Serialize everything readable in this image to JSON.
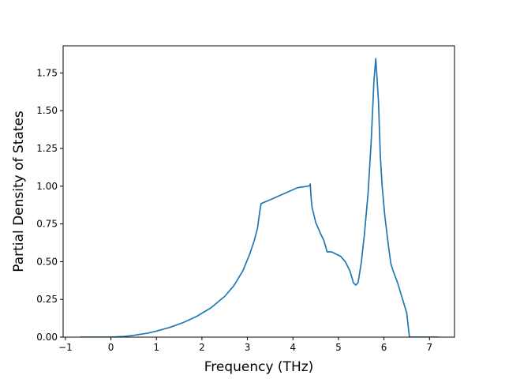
{
  "chart_data": {
    "type": "line",
    "title": "",
    "xlabel": "Frequency (THz)",
    "ylabel": "Partial Density of States",
    "xlim": [
      -1.05,
      7.55
    ],
    "ylim": [
      0.0,
      1.93
    ],
    "xticks": [
      -1,
      0,
      1,
      2,
      3,
      4,
      5,
      6,
      7
    ],
    "xtick_labels": [
      "−1",
      "0",
      "1",
      "2",
      "3",
      "4",
      "5",
      "6",
      "7"
    ],
    "yticks": [
      0.0,
      0.25,
      0.5,
      0.75,
      1.0,
      1.25,
      1.5,
      1.75
    ],
    "ytick_labels": [
      "0.00",
      "0.25",
      "0.50",
      "0.75",
      "1.00",
      "1.25",
      "1.50",
      "1.75"
    ],
    "grid": false,
    "series": [
      {
        "color": "#1f77b4",
        "x": [
          -0.68,
          -0.2,
          0,
          0.3,
          0.5,
          0.8,
          1.0,
          1.3,
          1.6,
          1.9,
          2.2,
          2.5,
          2.7,
          2.9,
          3.05,
          3.15,
          3.22,
          3.27,
          3.3,
          3.5,
          3.8,
          4.1,
          4.33,
          4.37,
          4.38,
          4.4,
          4.42,
          4.5,
          4.6,
          4.68,
          4.75,
          4.85,
          4.95,
          5.05,
          5.15,
          5.25,
          5.33,
          5.38,
          5.43,
          5.5,
          5.57,
          5.65,
          5.72,
          5.78,
          5.82,
          5.84,
          5.88,
          5.92,
          5.96,
          6.02,
          6.1,
          6.15,
          6.2,
          6.3,
          6.4,
          6.5,
          6.53,
          6.56,
          6.7,
          7.2
        ],
        "y": [
          0.0,
          0.0,
          0.0,
          0.005,
          0.012,
          0.026,
          0.04,
          0.065,
          0.098,
          0.14,
          0.195,
          0.27,
          0.34,
          0.44,
          0.55,
          0.64,
          0.72,
          0.83,
          0.885,
          0.91,
          0.95,
          0.99,
          1.0,
          1.005,
          1.015,
          0.92,
          0.86,
          0.76,
          0.69,
          0.64,
          0.565,
          0.565,
          0.55,
          0.535,
          0.5,
          0.44,
          0.36,
          0.345,
          0.36,
          0.49,
          0.68,
          0.95,
          1.3,
          1.7,
          1.845,
          1.75,
          1.56,
          1.2,
          1.0,
          0.8,
          0.6,
          0.49,
          0.44,
          0.36,
          0.26,
          0.16,
          0.08,
          0.0,
          0.0,
          0.0
        ]
      }
    ]
  }
}
